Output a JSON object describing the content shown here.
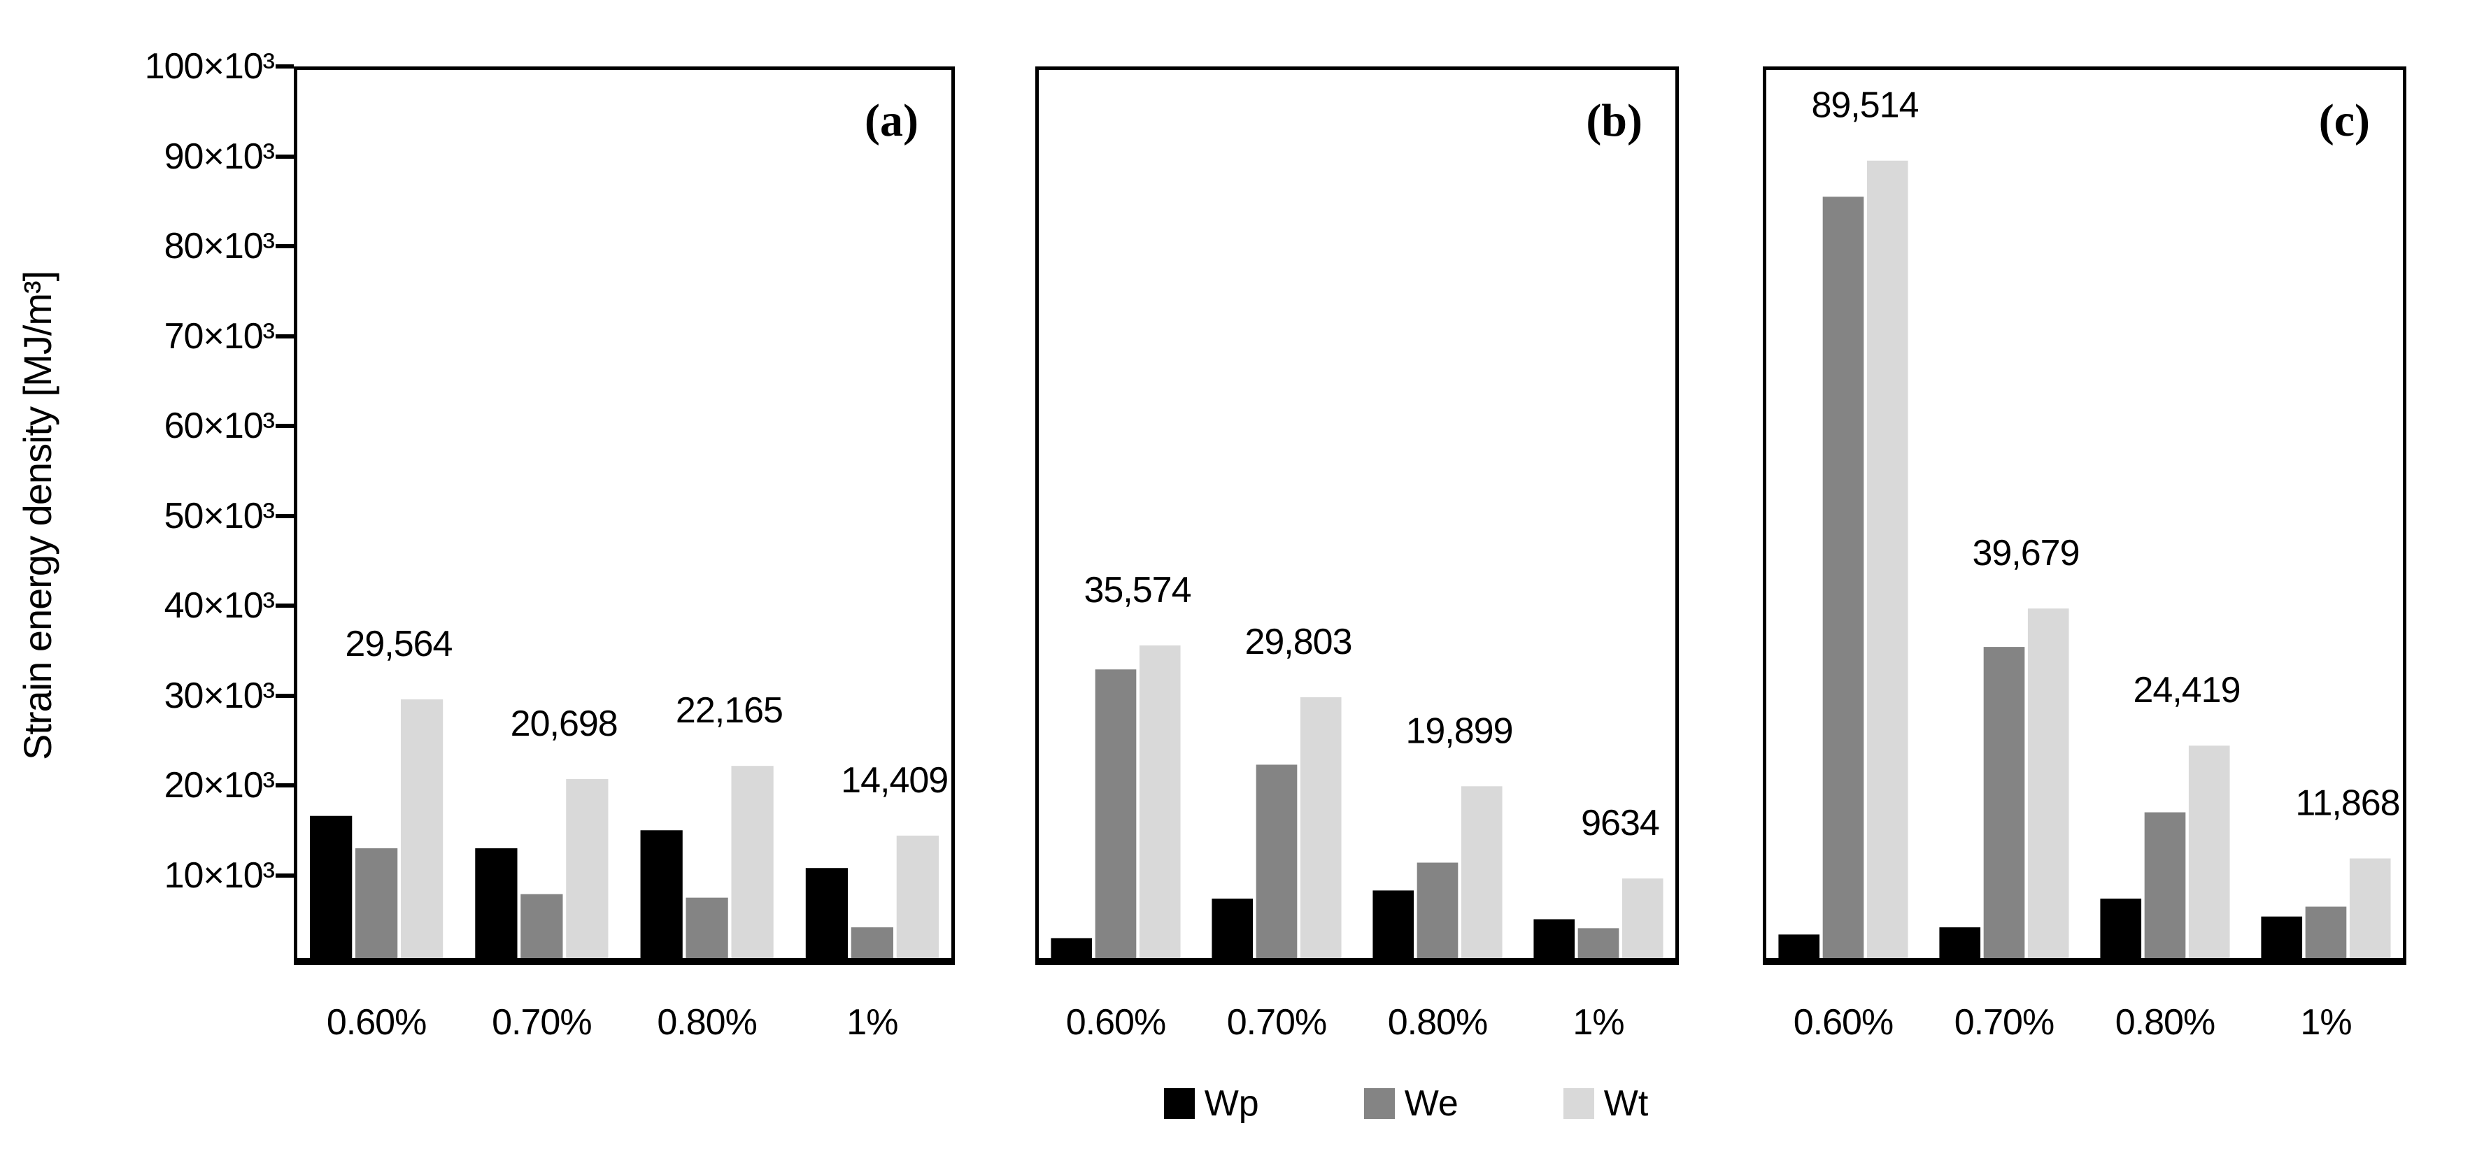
{
  "figure": {
    "y_axis_title": "Strain energy density [MJ/m³]",
    "background_color": "#ffffff",
    "y_axis": {
      "tick_labels": [
        "10×10³",
        "20×10³",
        "30×10³",
        "40×10³",
        "50×10³",
        "60×10³",
        "70×10³",
        "80×10³",
        "90×10³",
        "100×10³"
      ],
      "tick_values": [
        10000,
        20000,
        30000,
        40000,
        50000,
        60000,
        70000,
        80000,
        90000,
        100000
      ],
      "max": 100000
    }
  },
  "legend": {
    "position": "bottom-center",
    "items": [
      {
        "label": "Wp",
        "color": "#000000"
      },
      {
        "label": "We",
        "color": "#848484"
      },
      {
        "label": "Wt",
        "color": "#d9d9d9"
      }
    ]
  },
  "chart_data": [
    {
      "type": "bar",
      "panel_label": "(a)",
      "categories": [
        "0.60%",
        "0.70%",
        "0.80%",
        "1%"
      ],
      "series": [
        {
          "name": "Wp",
          "color": "#000000",
          "values": [
            16600,
            13000,
            15000,
            10800
          ]
        },
        {
          "name": "We",
          "color": "#848484",
          "values": [
            13000,
            7900,
            7500,
            4200
          ]
        },
        {
          "name": "Wt",
          "color": "#d9d9d9",
          "values": [
            29564,
            20698,
            22165,
            14409
          ]
        }
      ],
      "bar_labels": {
        "series": "Wt",
        "texts": [
          "29,564",
          "20,698",
          "22,165",
          "14,409"
        ]
      },
      "ylabel": "Strain energy density [MJ/m³]",
      "ylim": [
        0,
        100000
      ],
      "grid": false,
      "legend_position": "bottom"
    },
    {
      "type": "bar",
      "panel_label": "(b)",
      "categories": [
        "0.60%",
        "0.70%",
        "0.80%",
        "1%"
      ],
      "series": [
        {
          "name": "Wp",
          "color": "#000000",
          "values": [
            3000,
            7400,
            8300,
            5100
          ]
        },
        {
          "name": "We",
          "color": "#848484",
          "values": [
            32900,
            22300,
            11400,
            4100
          ]
        },
        {
          "name": "Wt",
          "color": "#d9d9d9",
          "values": [
            35574,
            29803,
            19899,
            9634
          ]
        }
      ],
      "bar_labels": {
        "series": "Wt",
        "texts": [
          "35,574",
          "29,803",
          "19,899",
          "9634"
        ]
      },
      "ylim": [
        0,
        100000
      ],
      "grid": false,
      "legend_position": "bottom"
    },
    {
      "type": "bar",
      "panel_label": "(c)",
      "categories": [
        "0.60%",
        "0.70%",
        "0.80%",
        "1%"
      ],
      "series": [
        {
          "name": "Wp",
          "color": "#000000",
          "values": [
            3400,
            4200,
            7400,
            5400
          ]
        },
        {
          "name": "We",
          "color": "#848484",
          "values": [
            85500,
            35400,
            17000,
            6500
          ]
        },
        {
          "name": "Wt",
          "color": "#d9d9d9",
          "values": [
            89514,
            39679,
            24419,
            11868
          ]
        }
      ],
      "bar_labels": {
        "series": "Wt",
        "texts": [
          "89,514",
          "39,679",
          "24,419",
          "11,868"
        ]
      },
      "ylim": [
        0,
        100000
      ],
      "grid": false,
      "legend_position": "bottom"
    }
  ]
}
